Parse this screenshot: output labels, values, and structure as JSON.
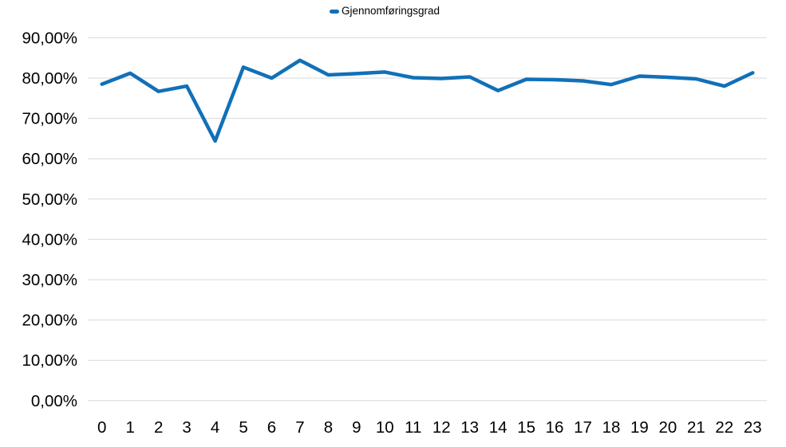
{
  "chart": {
    "legend_label": "Gjennomføringsgrad",
    "colors": {
      "line": "#1170B8",
      "grid": "#D9D9D9",
      "text": "#000000",
      "background": "#FFFFFF"
    }
  },
  "chart_data": {
    "type": "line",
    "title": "",
    "xlabel": "",
    "ylabel": "",
    "legend_position": "top-center",
    "grid": "horizontal-only",
    "value_format": "percent, comma decimal separator, 2 decimals",
    "x_tick_labels": [
      "0",
      "1",
      "2",
      "3",
      "4",
      "5",
      "6",
      "7",
      "8",
      "9",
      "10",
      "11",
      "12",
      "13",
      "14",
      "15",
      "16",
      "17",
      "18",
      "19",
      "20",
      "21",
      "22",
      "23"
    ],
    "y_tick_labels": [
      "0,00%",
      "10,00%",
      "20,00%",
      "30,00%",
      "40,00%",
      "50,00%",
      "60,00%",
      "70,00%",
      "80,00%",
      "90,00%"
    ],
    "ylim_percent": [
      0,
      90
    ],
    "y_tick_step_percent": 10,
    "series": [
      {
        "name": "Gjennomføringsgrad",
        "values_percent": [
          78.5,
          81.2,
          76.7,
          78.0,
          64.4,
          82.7,
          80.0,
          84.4,
          80.8,
          81.1,
          81.5,
          80.1,
          79.9,
          80.3,
          76.9,
          79.7,
          79.6,
          79.3,
          78.4,
          80.5,
          80.2,
          79.8,
          78.0,
          81.3
        ]
      }
    ]
  }
}
